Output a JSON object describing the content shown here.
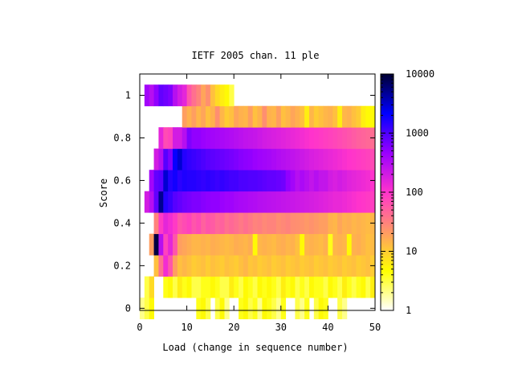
{
  "chart_data": {
    "type": "heatmap",
    "title": "IETF 2005 chan. 11 ple",
    "xlabel": "Load (change in sequence number)",
    "ylabel": "Score",
    "xlim": [
      0,
      50
    ],
    "ylim": [
      -0.01,
      1.1
    ],
    "x_ticks": [
      "0",
      "10",
      "20",
      "30",
      "40",
      "50"
    ],
    "y_ticks": [
      "0",
      "0.2",
      "0.4",
      "0.6",
      "0.8",
      "1"
    ],
    "colorbar": {
      "scale": "log",
      "range": [
        1,
        10000
      ],
      "ticks": [
        "1",
        "10",
        "100",
        "1000",
        "10000"
      ],
      "colors": [
        "#ffffff",
        "#ffff00",
        "#ff9966",
        "#ff33cc",
        "#9900ff",
        "#0000ff",
        "#000033"
      ]
    },
    "x_bin_width": 1,
    "y_bin_width": 0.1,
    "rows": [
      {
        "y": 0.0,
        "x_start": 0,
        "counts": [
          2,
          3,
          5,
          1,
          1,
          1,
          1,
          1,
          1,
          1,
          1,
          1,
          4,
          5,
          3,
          1,
          3,
          5,
          2,
          1,
          1,
          4,
          5,
          3,
          4,
          2,
          5,
          4,
          3,
          2,
          4,
          1,
          1,
          3,
          2,
          4,
          1,
          3,
          5,
          4,
          1,
          1,
          3,
          2,
          1,
          1,
          1,
          1,
          1,
          1
        ]
      },
      {
        "y": 0.1,
        "x_start": 0,
        "counts": [
          1,
          3,
          8,
          1,
          1,
          4,
          5,
          3,
          6,
          4,
          5,
          3,
          3,
          4,
          4,
          5,
          4,
          3,
          3,
          6,
          4,
          3,
          5,
          4,
          3,
          5,
          4,
          5,
          4,
          3,
          6,
          4,
          5,
          3,
          4,
          3,
          5,
          4,
          4,
          3,
          5,
          4,
          3,
          6,
          4,
          3,
          4,
          5,
          3,
          6
        ]
      },
      {
        "y": 0.2,
        "x_start": 0,
        "counts": [
          1,
          1,
          1,
          12,
          40,
          120,
          60,
          20,
          12,
          14,
          12,
          10,
          11,
          12,
          10,
          12,
          11,
          10,
          12,
          11,
          10,
          12,
          14,
          11,
          12,
          10,
          11,
          12,
          10,
          11,
          12,
          10,
          11,
          12,
          10,
          11,
          12,
          10,
          11,
          12,
          10,
          11,
          12,
          10,
          11,
          12,
          10,
          11,
          12,
          10
        ]
      },
      {
        "y": 0.3,
        "x_start": 0,
        "counts": [
          1,
          1,
          20,
          9000,
          300,
          80,
          150,
          60,
          20,
          18,
          16,
          14,
          14,
          15,
          14,
          16,
          15,
          14,
          13,
          14,
          16,
          15,
          14,
          16,
          5,
          14,
          15,
          14,
          13,
          15,
          16,
          14,
          15,
          12,
          5,
          14,
          15,
          14,
          13,
          15,
          4,
          14,
          15,
          14,
          5,
          15,
          16,
          14,
          12,
          13
        ]
      },
      {
        "y": 0.4,
        "x_start": 0,
        "counts": [
          1,
          1,
          1,
          30,
          90,
          150,
          120,
          90,
          60,
          70,
          80,
          60,
          70,
          50,
          60,
          55,
          45,
          50,
          40,
          45,
          40,
          35,
          40,
          35,
          30,
          32,
          28,
          30,
          30,
          26,
          28,
          30,
          26,
          25,
          24,
          22,
          24,
          22,
          20,
          20,
          15,
          14,
          18,
          15,
          16,
          14,
          15,
          14,
          13,
          14
        ]
      },
      {
        "y": 0.5,
        "x_start": 0,
        "counts": [
          1,
          200,
          300,
          800,
          5000,
          1500,
          1200,
          900,
          800,
          700,
          650,
          600,
          600,
          550,
          520,
          500,
          500,
          450,
          420,
          420,
          380,
          360,
          350,
          330,
          320,
          300,
          290,
          280,
          270,
          260,
          250,
          240,
          230,
          220,
          210,
          200,
          190,
          180,
          170,
          160,
          150,
          140,
          140,
          130,
          120,
          110,
          100,
          95,
          90,
          85
        ]
      },
      {
        "y": 0.6,
        "x_start": 0,
        "counts": [
          1,
          1,
          400,
          800,
          900,
          3000,
          1500,
          1800,
          1400,
          1600,
          1500,
          1500,
          1400,
          1300,
          1400,
          1300,
          1200,
          1300,
          1200,
          1100,
          1100,
          1000,
          1000,
          950,
          950,
          900,
          850,
          800,
          800,
          750,
          700,
          500,
          400,
          300,
          350,
          300,
          250,
          300,
          250,
          250,
          200,
          180,
          200,
          180,
          160,
          150,
          140,
          130,
          120,
          100
        ]
      },
      {
        "y": 0.7,
        "x_start": 0,
        "counts": [
          1,
          1,
          1,
          200,
          300,
          900,
          600,
          2000,
          3000,
          1500,
          1300,
          1200,
          1100,
          1000,
          900,
          850,
          800,
          750,
          700,
          650,
          600,
          550,
          520,
          500,
          450,
          420,
          400,
          380,
          350,
          320,
          300,
          280,
          260,
          240,
          220,
          200,
          180,
          170,
          160,
          150,
          140,
          130,
          120,
          110,
          100,
          95,
          90,
          85,
          80,
          70
        ]
      },
      {
        "y": 0.8,
        "x_start": 0,
        "counts": [
          1,
          1,
          1,
          1,
          150,
          70,
          80,
          200,
          200,
          300,
          600,
          500,
          500,
          450,
          420,
          400,
          380,
          360,
          340,
          320,
          300,
          280,
          260,
          250,
          240,
          220,
          200,
          190,
          180,
          170,
          160,
          150,
          140,
          130,
          120,
          110,
          100,
          95,
          90,
          85,
          80,
          75,
          70,
          65,
          60,
          55,
          50,
          48,
          45,
          42
        ]
      },
      {
        "y": 0.9,
        "x_start": 0,
        "counts": [
          1,
          1,
          1,
          1,
          1,
          1,
          1,
          1,
          1,
          20,
          15,
          20,
          14,
          18,
          12,
          15,
          25,
          14,
          10,
          12,
          18,
          15,
          14,
          20,
          12,
          15,
          25,
          15,
          14,
          20,
          12,
          14,
          18,
          15,
          12,
          6,
          14,
          10,
          12,
          14,
          15,
          12,
          6,
          14,
          15,
          12,
          10,
          6,
          5,
          5
        ]
      },
      {
        "y": 1.0,
        "x_start": 0,
        "counts": [
          1,
          400,
          300,
          500,
          800,
          700,
          600,
          300,
          200,
          150,
          60,
          40,
          30,
          18,
          25,
          12,
          8,
          6,
          5,
          3,
          1,
          1,
          1,
          1,
          1,
          1,
          1,
          1,
          1,
          1,
          1,
          1,
          1,
          1,
          1,
          1,
          1,
          1,
          1,
          1,
          1,
          1,
          1,
          1,
          1,
          1,
          1,
          1,
          1,
          1
        ]
      }
    ]
  }
}
